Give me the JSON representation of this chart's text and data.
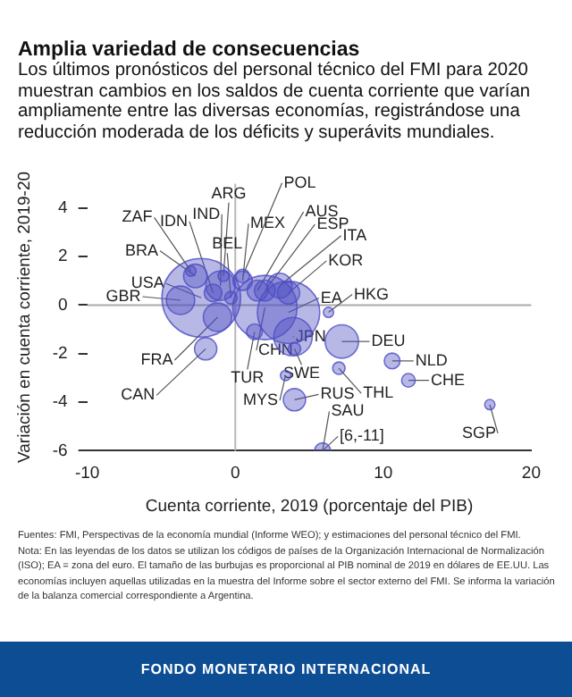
{
  "chart_data": {
    "type": "bubble",
    "title": "Amplia variedad de consecuencias",
    "subtitle": "Los últimos pronósticos del personal técnico del FMI para 2020 muestran cambios en los saldos de cuenta corriente que varían ampliamente entre las diversas economías, registrándose una reducción moderada de los déficits y superávits mundiales.",
    "xlabel": "Cuenta corriente, 2019 (porcentaje del PIB)",
    "ylabel": "Variación en cuenta corriente, 2019-20",
    "x": [
      -2.3,
      -3.7,
      -2.7,
      -3.0,
      -1.5,
      -1.0,
      -0.8,
      -0.3,
      0.5,
      0.5,
      1.5,
      2.0,
      3.0,
      3.6,
      3.6,
      2.0,
      6.3,
      1.3,
      -1.2,
      -2.0,
      3.9,
      4.0,
      7.0,
      7.2,
      10.6,
      11.7,
      17.2,
      4.0,
      3.4,
      5.9
    ],
    "series": [
      {
        "color": "#4d4dc4",
        "values": [
          0.3,
          0.2,
          1.2,
          1.4,
          0.5,
          0.8,
          1.2,
          0.3,
          1.0,
          1.2,
          0.6,
          0.6,
          0.8,
          0.5,
          -0.3,
          -0.1,
          -0.3,
          -1.1,
          -0.5,
          -1.8,
          -1.3,
          -1.8,
          -2.6,
          -1.5,
          -2.3,
          -3.1,
          -4.1,
          -3.9,
          -2.9,
          -6
        ],
        "sizes": [
          1,
          0.13,
          0.09,
          0.017,
          0.05,
          0.14,
          0.02,
          0.025,
          0.06,
          0.03,
          0.07,
          0.07,
          0.1,
          0.08,
          0.63,
          0.67,
          0.017,
          0.04,
          0.13,
          0.08,
          0.24,
          0.025,
          0.025,
          0.18,
          0.04,
          0.03,
          0.017,
          0.08,
          0.017,
          0.04
        ]
      }
    ],
    "xlim": [
      -10,
      20
    ],
    "xticks": [
      -10,
      0,
      10,
      20
    ],
    "ylim": [
      -6,
      5
    ],
    "yticks": [
      -6,
      -4,
      -2,
      0,
      2,
      4
    ],
    "ref_lines": [
      {
        "axis": "x",
        "value": 0,
        "color": "#b8b8b8"
      },
      {
        "axis": "y",
        "value": 0,
        "color": "#aaaaaa"
      }
    ],
    "annotations": [
      {
        "text": "USA",
        "x": -2.3,
        "y": 0.3
      },
      {
        "text": "GBR",
        "x": -3.7,
        "y": 0.2
      },
      {
        "text": "BRA",
        "x": -2.7,
        "y": 1.2
      },
      {
        "text": "ZAF",
        "x": -3.0,
        "y": 1.4
      },
      {
        "text": "IDN",
        "x": -1.5,
        "y": 0.5
      },
      {
        "text": "IND",
        "x": -1.0,
        "y": 0.8
      },
      {
        "text": "ARG",
        "x": -0.8,
        "y": 1.2
      },
      {
        "text": "BEL",
        "x": -0.3,
        "y": 0.3
      },
      {
        "text": "MEX",
        "x": 0.5,
        "y": 1.0
      },
      {
        "text": "POL",
        "x": 0.5,
        "y": 1.2
      },
      {
        "text": "AUS",
        "x": 1.5,
        "y": 0.6
      },
      {
        "text": "ESP",
        "x": 2.0,
        "y": 0.6
      },
      {
        "text": "ITA",
        "x": 3.0,
        "y": 0.8
      },
      {
        "text": "KOR",
        "x": 3.6,
        "y": 0.5
      },
      {
        "text": "EA",
        "x": 3.6,
        "y": -0.3
      },
      {
        "text": "CHN",
        "x": 2.0,
        "y": -0.1
      },
      {
        "text": "HKG",
        "x": 6.3,
        "y": -0.3
      },
      {
        "text": "TUR",
        "x": 1.3,
        "y": -1.1
      },
      {
        "text": "FRA",
        "x": -1.2,
        "y": -0.5
      },
      {
        "text": "CAN",
        "x": -2.0,
        "y": -1.8
      },
      {
        "text": "JPN",
        "x": 3.9,
        "y": -1.3
      },
      {
        "text": "SWE",
        "x": 4.0,
        "y": -1.8
      },
      {
        "text": "THL",
        "x": 7.0,
        "y": -2.6
      },
      {
        "text": "DEU",
        "x": 7.2,
        "y": -1.5
      },
      {
        "text": "NLD",
        "x": 10.6,
        "y": -2.3
      },
      {
        "text": "CHE",
        "x": 11.7,
        "y": -3.1
      },
      {
        "text": "SGP",
        "x": 17.2,
        "y": -4.1
      },
      {
        "text": "RUS",
        "x": 4.0,
        "y": -3.9
      },
      {
        "text": "MYS",
        "x": 3.4,
        "y": -2.9
      },
      {
        "text": "SAU",
        "x": 5.9,
        "y": -6
      },
      {
        "text": "[6,-11]",
        "x": 5.9,
        "y": -6
      },
      "Fuentes: FMI, Perspectivas de la economía mundial (Informe WEO); y estimaciones del personal técnico del FMI.",
      "Nota: En las leyendas de los datos se utilizan los códigos de países de la Organización Internacional de Normalización (ISO); EA = zona del euro. El tamaño de las burbujas es proporcional al PIB nominal de 2019 en dólares de EE.UU. Las economías incluyen aquellas utilizadas en la muestra del Informe sobre el sector externo del FMI. Se informa la variación de la balanza comercial correspondiente a Argentina.",
      "FONDO MONETARIO INTERNACIONAL"
    ]
  }
}
